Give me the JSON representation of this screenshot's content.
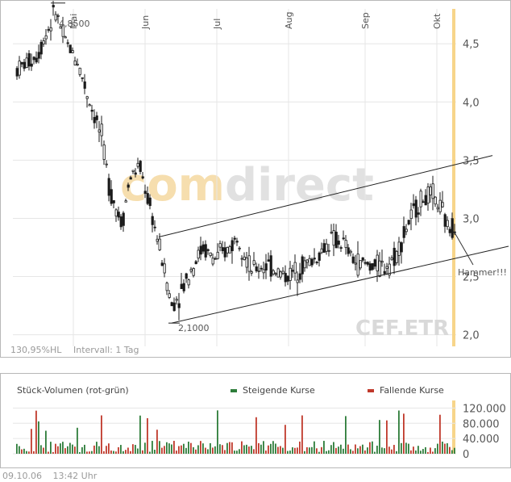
{
  "chart_data": [
    {
      "type": "candlestick",
      "ticker": "CEF.ETR",
      "watermark": "comdirect",
      "month_labels": [
        "Mai",
        "Jun",
        "Jul",
        "Aug",
        "Sep",
        "Okt"
      ],
      "y_tick_labels": [
        "4,5",
        "4,0",
        "3,5",
        "3,0",
        "2,5",
        "2,0"
      ],
      "y_ticks": [
        4.5,
        4.0,
        3.5,
        3.0,
        2.5,
        2.0
      ],
      "ylim": [
        1.9,
        4.8
      ],
      "annotations": {
        "high_label": "4,8500",
        "high_value": 4.85,
        "low_label": "2,1000",
        "low_value": 2.1,
        "pattern_label": "Hammer!!!"
      },
      "info": {
        "range": "130,95%HL",
        "interval": "Intervall: 1 Tag"
      },
      "trend_lines": [
        {
          "name": "upper channel",
          "start": [
            2.84,
            "Jun"
          ],
          "end_value": 3.54
        },
        {
          "name": "lower channel",
          "start_value": 2.1,
          "end_value": 2.76
        }
      ],
      "grid": true
    },
    {
      "type": "bar",
      "title": "Stück-Volumen (rot-grün)",
      "legend": [
        {
          "label": "Steigende Kurse",
          "color": "#2e7d3a"
        },
        {
          "label": "Fallende Kurse",
          "color": "#c0392b"
        }
      ],
      "y_tick_labels": [
        "120.000",
        "80.000",
        "40.000",
        "0"
      ],
      "y_ticks": [
        120000,
        80000,
        40000,
        0
      ],
      "ylim": [
        0,
        140000
      ]
    }
  ],
  "footer": {
    "date": "09.10.06",
    "time": "13:42 Uhr"
  },
  "colors": {
    "grid": "#e6e6e6",
    "up": "#2e7d3a",
    "down": "#c0392b",
    "highlight": "#f7d58a",
    "candle": "#1a1a1a"
  }
}
